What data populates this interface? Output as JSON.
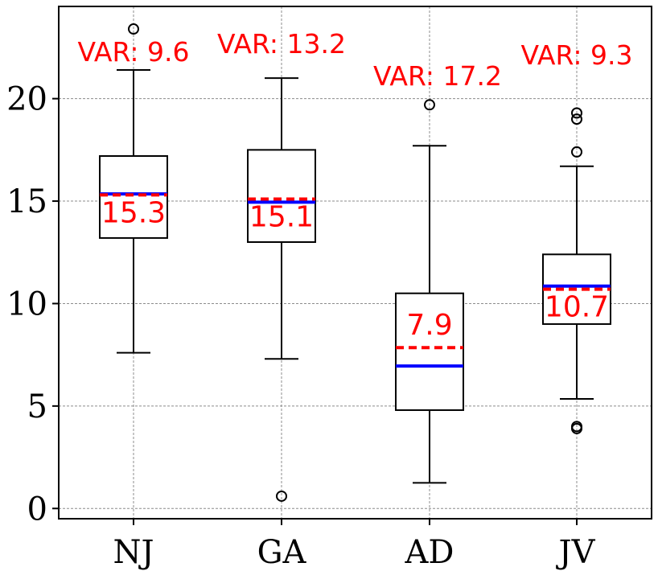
{
  "chart_data": {
    "type": "box",
    "categories": [
      "NJ",
      "GA",
      "AD",
      "JV"
    ],
    "ylim": [
      -0.5,
      24.5
    ],
    "yticks": [
      0,
      5,
      10,
      15,
      20
    ],
    "grid": true,
    "colors": {
      "mean_line": "#ff0000",
      "median_line": "#0000ff",
      "box": "#000000",
      "annotation": "#ff0000"
    },
    "boxes": [
      {
        "category": "NJ",
        "whisker_low": 7.6,
        "q1": 13.2,
        "median": 15.35,
        "mean": 15.3,
        "q3": 17.2,
        "whisker_high": 21.4,
        "outliers": [
          23.4
        ],
        "mean_label": "15.3",
        "var_label": "VAR: 9.6"
      },
      {
        "category": "GA",
        "whisker_low": 7.3,
        "q1": 13.0,
        "median": 14.95,
        "mean": 15.1,
        "q3": 17.5,
        "whisker_high": 21.0,
        "outliers": [
          0.6
        ],
        "mean_label": "15.1",
        "var_label": "VAR: 13.2"
      },
      {
        "category": "AD",
        "whisker_low": 1.25,
        "q1": 4.8,
        "median": 6.95,
        "mean": 7.85,
        "q3": 10.5,
        "whisker_high": 17.7,
        "outliers": [
          19.7
        ],
        "mean_label": "7.9",
        "var_label": "VAR: 17.2"
      },
      {
        "category": "JV",
        "whisker_low": 5.35,
        "q1": 9.0,
        "median": 10.85,
        "mean": 10.7,
        "q3": 12.4,
        "whisker_high": 16.7,
        "outliers": [
          3.9,
          4.0,
          17.4,
          19.0,
          19.3
        ],
        "mean_label": "10.7",
        "var_label": "VAR: 9.3"
      }
    ]
  }
}
